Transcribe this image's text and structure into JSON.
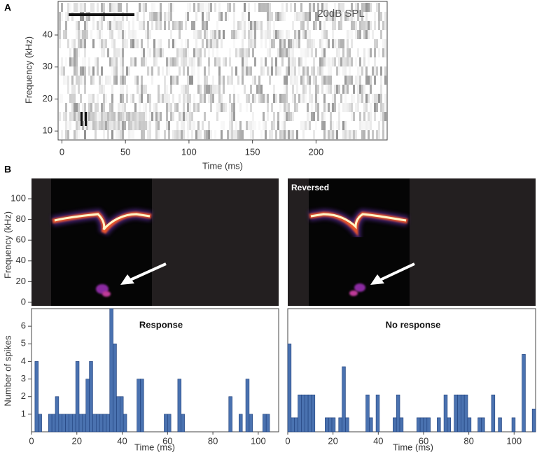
{
  "panel_labels": [
    "A",
    "B"
  ],
  "chart_data": [
    {
      "type": "spectrogram",
      "annotation": "20dB SPL",
      "xlabel": "Time (ms)",
      "ylabel": "Frequency (kHz)",
      "xlim": [
        -3,
        256
      ],
      "xticks": [
        0,
        50,
        100,
        150,
        200
      ],
      "ylim": [
        7.2,
        50.5
      ],
      "yticks": [
        10,
        20,
        30,
        40
      ]
    },
    {
      "type": "spectrogram",
      "ylabel": "Frequency (kHz)",
      "ylim": [
        -3.4,
        119.6
      ],
      "yticks": [
        0,
        20,
        40,
        60,
        80,
        100
      ]
    },
    {
      "type": "spectrogram",
      "annotation": "Reversed"
    },
    {
      "type": "histogram",
      "title": "Response",
      "xlabel": "Time (ms)",
      "ylabel": "Number of spikes",
      "color": "#4a72b0",
      "bins": [
        0,
        1.5,
        3,
        4.5,
        6,
        7.5,
        9,
        10.5,
        12,
        13.5,
        15,
        16.5,
        18,
        19.5,
        21,
        22.5,
        24,
        25.5,
        27,
        28.5,
        30,
        31.5,
        33,
        34.5,
        36,
        37.5,
        39,
        40.5,
        42,
        43.5,
        45,
        46.5,
        48,
        49.5,
        51,
        52.5,
        54,
        55.5,
        57,
        58.5,
        60,
        61.5,
        63,
        64.5,
        66,
        67.5,
        69,
        70.5,
        72,
        73.5,
        75,
        76.5,
        78,
        79.5,
        81,
        82.5,
        84,
        85.5,
        87,
        88.5,
        90,
        91.5,
        93,
        94.5,
        96,
        97.5,
        99,
        100.5,
        102,
        103.5,
        105,
        106.5
      ],
      "values": [
        0,
        4,
        1,
        0,
        0,
        1,
        1,
        2,
        1,
        1,
        1,
        1,
        1,
        4,
        1,
        1,
        3,
        4,
        1,
        1,
        1,
        1,
        1,
        7,
        5,
        2,
        2,
        1,
        0,
        0,
        0,
        3,
        3,
        0,
        0,
        0,
        0,
        0,
        0,
        1,
        1,
        0,
        0,
        3,
        1,
        0,
        0,
        0,
        0,
        0,
        0,
        0,
        0,
        0,
        0,
        0,
        0,
        0,
        2,
        0,
        0,
        1,
        0,
        3,
        1,
        0,
        0,
        0,
        1,
        1,
        0
      ],
      "xlim": [
        0,
        109
      ],
      "xticks": [
        0,
        20,
        40,
        60,
        80,
        100
      ],
      "ylim": [
        0,
        7
      ],
      "yticks": [
        1,
        2,
        3,
        4,
        5,
        6
      ]
    },
    {
      "type": "histogram",
      "title": "No response",
      "xlabel": "Time (ms)",
      "color": "#4a72b0",
      "bins": [
        0,
        1.5,
        3,
        4.5,
        6,
        7.5,
        9,
        10.5,
        12,
        13.5,
        15,
        16.5,
        18,
        19.5,
        21,
        22.5,
        24,
        25.5,
        27,
        28.5,
        30,
        31.5,
        33,
        34.5,
        36,
        37.5,
        39,
        40.5,
        42,
        43.5,
        45,
        46.5,
        48,
        49.5,
        51,
        52.5,
        54,
        55.5,
        57,
        58.5,
        60,
        61.5,
        63,
        64.5,
        66,
        67.5,
        69,
        70.5,
        72,
        73.5,
        75,
        76.5,
        78,
        79.5,
        81,
        82.5,
        84,
        85.5,
        87,
        88.5,
        90,
        91.5,
        93,
        94.5,
        96,
        97.5,
        99,
        100.5,
        102,
        103.5,
        105,
        106.5,
        108,
        109.5
      ],
      "values": [
        5,
        0.8,
        0.8,
        2.1,
        2.1,
        2.1,
        2.1,
        2.1,
        0,
        0,
        0,
        0.8,
        0.8,
        0.8,
        0,
        0.8,
        3.7,
        0.8,
        0,
        0,
        0,
        0,
        0,
        2.1,
        0.8,
        0,
        2.1,
        0,
        0,
        0,
        0,
        0.8,
        2.1,
        0.8,
        0,
        0,
        0,
        0,
        0.8,
        0.8,
        0.8,
        0.8,
        0,
        0,
        0.8,
        0,
        2.1,
        0.8,
        0,
        2.1,
        2.1,
        2.1,
        2.1,
        0.8,
        0,
        0,
        0.8,
        0.8,
        0,
        0,
        2.1,
        0,
        0.8,
        0,
        0,
        0,
        0.8,
        0,
        0,
        4.4,
        0,
        0,
        1.3
      ],
      "xlim": [
        0,
        109.5
      ],
      "xticks": [
        0,
        20,
        40,
        60,
        80,
        100
      ],
      "ylim": [
        0,
        7
      ]
    }
  ]
}
